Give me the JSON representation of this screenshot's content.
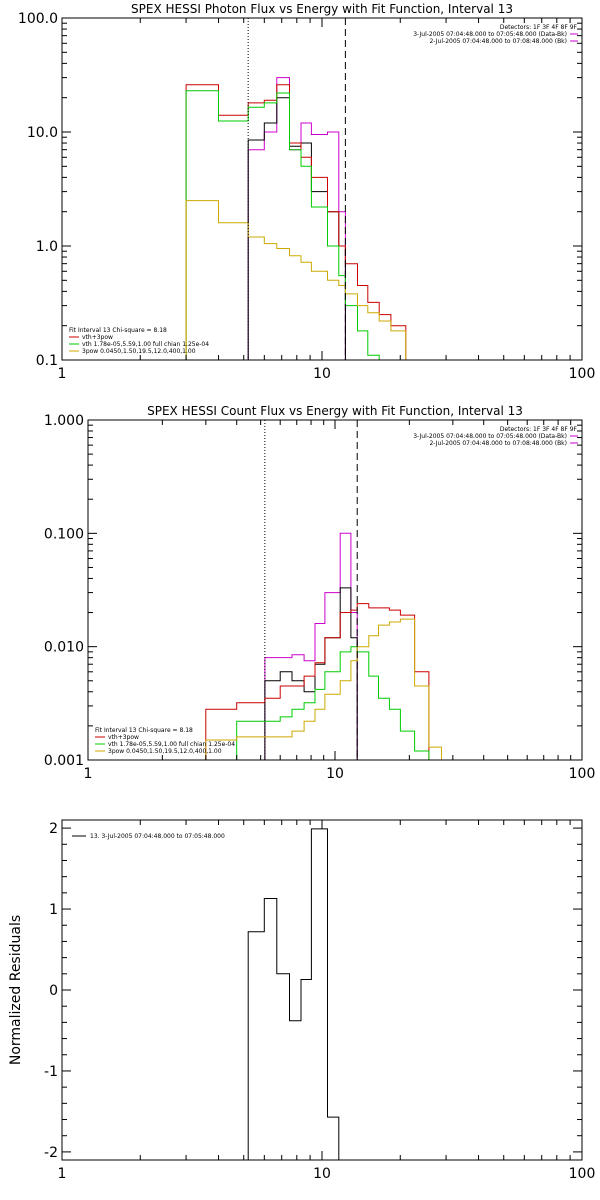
{
  "chart_data": [
    {
      "type": "line",
      "step": true,
      "title": "SPEX HESSI Photon Flux vs Energy with Fit Function, Interval 13",
      "xlabel": "",
      "ylabel": "",
      "xscale": "log",
      "yscale": "log",
      "xlim": [
        1,
        100
      ],
      "ylim": [
        0.1,
        100
      ],
      "xticks": [
        1,
        10,
        100
      ],
      "xtick_labels": [
        "1",
        "10",
        "100"
      ],
      "yticks": [
        0.1,
        1,
        10,
        100
      ],
      "ytick_labels": [
        "0.1",
        "1.0",
        "10.0",
        "100.0"
      ],
      "grid": false,
      "vlines": [
        {
          "x": 5.2,
          "style": "dotted"
        },
        {
          "x": 12.3,
          "style": "dashed"
        }
      ],
      "header": [
        {
          "text": "Detectors: 1F 3F 4F 8F 9F",
          "color": ""
        },
        {
          "text": "3-Jul-2005 07:04:48.000 to 07:05:48.000 (Data-Bk)",
          "color": "#cc00cc"
        },
        {
          "text": "2-Jul-2005 07:04:48.000 to 07:08:48.000 (Bk)",
          "color": "#cc00cc"
        }
      ],
      "legend": {
        "placement": "bottom-left",
        "title": "Fit Interval 13    Chi-square = 8.18",
        "entries": [
          {
            "text": "vth+3pow",
            "color": "#cc0000"
          },
          {
            "text": "vth 1.78e-05,5.59,1.00  full chian 1.25e-04",
            "color": "#00cc00"
          },
          {
            "text": "3pow 0.0450,1.50,19.5,12.0,400,1.00",
            "color": "#ccaa00"
          }
        ]
      },
      "bin_edges": [
        3,
        4,
        5.2,
        6,
        6.7,
        7.5,
        8.3,
        9.1,
        10.5,
        11.6,
        12.3,
        13.7,
        15,
        16.6,
        18.4,
        21
      ],
      "series": [
        {
          "name": "",
          "color": "#cc00cc",
          "values": [
            null,
            null,
            7.0,
            10.0,
            30.0,
            7.0,
            12.0,
            9.5,
            10.0,
            2.0,
            null,
            null,
            null,
            null,
            null
          ]
        },
        {
          "name": "",
          "color": "#000000",
          "values": [
            null,
            null,
            8.5,
            12.0,
            20.0,
            7.5,
            8.0,
            3.0,
            2.0,
            1.0,
            null,
            null,
            null,
            null,
            null
          ]
        },
        {
          "name": "vth+3pow",
          "color": "#cc0000",
          "values": [
            26.0,
            14.0,
            18.0,
            19.0,
            26.0,
            8.0,
            6.0,
            4.0,
            2.0,
            1.0,
            0.7,
            0.45,
            0.32,
            0.25,
            0.2
          ]
        },
        {
          "name": "vth 1.78e-05,5.59,1.00  full chian 1.25e-04",
          "color": "#00cc00",
          "values": [
            23.0,
            12.5,
            16.5,
            18.0,
            22.0,
            7.0,
            5.0,
            2.2,
            1.0,
            0.55,
            0.3,
            0.18,
            0.11,
            null,
            null
          ]
        },
        {
          "name": "3pow 0.0450,1.50,19.5,12.0,400,1.00",
          "color": "#ccaa00",
          "values": [
            2.5,
            1.6,
            1.2,
            1.05,
            0.95,
            0.82,
            0.72,
            0.6,
            0.5,
            0.45,
            0.38,
            0.3,
            0.26,
            0.22,
            0.18
          ]
        }
      ]
    },
    {
      "type": "line",
      "step": true,
      "title": "SPEX HESSI Count Flux vs Energy with Fit Function, Interval 13",
      "xlabel": "",
      "ylabel": "",
      "xscale": "log",
      "yscale": "log",
      "xlim": [
        1,
        100
      ],
      "ylim": [
        0.001,
        1
      ],
      "xticks": [
        1,
        10,
        100
      ],
      "xtick_labels": [
        "1",
        "10",
        "100"
      ],
      "yticks": [
        0.001,
        0.01,
        0.1,
        1
      ],
      "ytick_labels": [
        "0.001",
        "0.010",
        "0.100",
        "1.000"
      ],
      "grid": false,
      "vlines": [
        {
          "x": 5.2,
          "style": "dotted"
        },
        {
          "x": 12.3,
          "style": "dashed"
        }
      ],
      "header": [
        {
          "text": "Detectors: 1F 3F 4F 8F 9F",
          "color": ""
        },
        {
          "text": "3-Jul-2005 07:04:48.000 to 07:05:48.000 (Data-Bk)",
          "color": "#cc00cc"
        },
        {
          "text": "2-Jul-2005 07:04:48.000 to 07:08:48.000 (Bk)",
          "color": "#cc00cc"
        }
      ],
      "legend": {
        "placement": "bottom-left",
        "title": "Fit Interval 13    Chi-square = 8.18",
        "entries": [
          {
            "text": "vth+3pow",
            "color": "#cc0000"
          },
          {
            "text": "vth 1.78e-05,5.59,1.00  full chian 1.25e-04",
            "color": "#00cc00"
          },
          {
            "text": "3pow 0.0450,1.50,19.5,12.0,400,1.00",
            "color": "#ccaa00"
          }
        ]
      },
      "bin_edges": [
        3,
        4,
        5.2,
        6,
        6.7,
        7.5,
        8.3,
        9.1,
        10.5,
        11.6,
        12.3,
        13.7,
        15,
        16.6,
        18.4,
        21,
        24,
        27
      ],
      "series": [
        {
          "name": "",
          "color": "#cc00cc",
          "values": [
            null,
            null,
            0.008,
            0.008,
            0.0085,
            0.0075,
            0.016,
            0.03,
            0.1,
            0.02,
            null,
            null,
            null,
            null,
            null,
            null,
            null
          ]
        },
        {
          "name": "",
          "color": "#000000",
          "values": [
            null,
            null,
            0.005,
            0.006,
            0.005,
            0.004,
            0.007,
            0.012,
            0.033,
            0.012,
            null,
            null,
            null,
            null,
            null,
            null,
            null
          ]
        },
        {
          "name": "vth+3pow",
          "color": "#cc0000",
          "values": [
            0.0028,
            0.0032,
            0.0035,
            0.0045,
            0.0045,
            0.0055,
            0.0072,
            0.012,
            0.02,
            0.021,
            0.024,
            0.022,
            0.022,
            0.021,
            0.019,
            0.006,
            null
          ]
        },
        {
          "name": "vth 1.78e-05,5.59,1.00  full chian 1.25e-04",
          "color": "#00cc00",
          "values": [
            null,
            0.0022,
            0.0022,
            0.0024,
            0.0028,
            0.0032,
            0.0042,
            0.006,
            0.009,
            0.01,
            0.009,
            0.0055,
            0.0035,
            0.0028,
            0.0018,
            0.0012,
            null
          ]
        },
        {
          "name": "3pow 0.0450,1.50,19.5,12.0,400,1.00",
          "color": "#ccaa00",
          "values": [
            0.0015,
            0.0016,
            0.0016,
            0.0016,
            0.0018,
            0.0022,
            0.0028,
            0.0038,
            0.005,
            0.0075,
            0.01,
            0.0125,
            0.0155,
            0.0165,
            0.0175,
            0.0045,
            0.0013
          ]
        }
      ]
    },
    {
      "type": "line",
      "step": true,
      "title": "",
      "xlabel": "",
      "ylabel": "Normalized Residuals",
      "xscale": "log",
      "yscale": "linear",
      "xlim": [
        1,
        100
      ],
      "ylim": [
        -2.1,
        2.1
      ],
      "xticks": [
        1,
        10,
        100
      ],
      "xtick_labels": [
        "1",
        "10",
        "100"
      ],
      "yticks": [
        -2,
        -1,
        0,
        1,
        2
      ],
      "ytick_labels": [
        "-2",
        "-1",
        "0",
        "1",
        "2"
      ],
      "grid": false,
      "legend": {
        "placement": "top-left",
        "entries": [
          {
            "text": "13.  3-Jul-2005 07:04:48.000 to 07:05:48.000",
            "color": "#000000"
          }
        ]
      },
      "bin_edges": [
        5.2,
        6,
        6.7,
        7.5,
        8.3,
        9.1,
        10.5,
        11.6,
        12.3
      ],
      "series": [
        {
          "name": "13.  3-Jul-2005 07:04:48.000 to 07:05:48.000",
          "color": "#000000",
          "values": [
            0.72,
            1.13,
            0.2,
            -0.38,
            0.13,
            1.99,
            -1.57,
            -2.1
          ]
        }
      ]
    }
  ]
}
